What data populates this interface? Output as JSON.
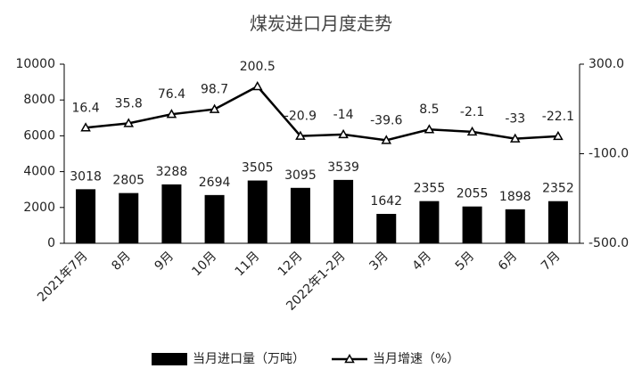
{
  "chart_data": {
    "type": "bar",
    "title": "煤炭进口月度走势",
    "categories": [
      "2021年7月",
      "8月",
      "9月",
      "10月",
      "11月",
      "12月",
      "2022年1-2月",
      "3月",
      "4月",
      "5月",
      "6月",
      "7月"
    ],
    "series": [
      {
        "name": "当月进口量（万吨）",
        "type": "bar",
        "color": "#000000",
        "values": [
          3018,
          2805,
          3288,
          2694,
          3505,
          3095,
          3539,
          1642,
          2355,
          2055,
          1898,
          2352
        ]
      },
      {
        "name": "当月增速（%）",
        "type": "line",
        "axis": "y2",
        "color": "#000000",
        "values": [
          16.4,
          35.8,
          76.4,
          98.7,
          200.5,
          -20.9,
          -14.0,
          -39.6,
          8.5,
          -2.1,
          -33.0,
          -22.1
        ]
      }
    ],
    "ylim": [
      0,
      10000
    ],
    "yticks": [
      0,
      2000,
      4000,
      6000,
      8000,
      10000
    ],
    "y2lim": [
      -500,
      300
    ],
    "y2ticks": [
      {
        "value": -500,
        "label": "-500.0"
      },
      {
        "value": -100,
        "label": "-100.0"
      },
      {
        "value": 300,
        "label": "300.0"
      }
    ],
    "legend": "bottom"
  }
}
